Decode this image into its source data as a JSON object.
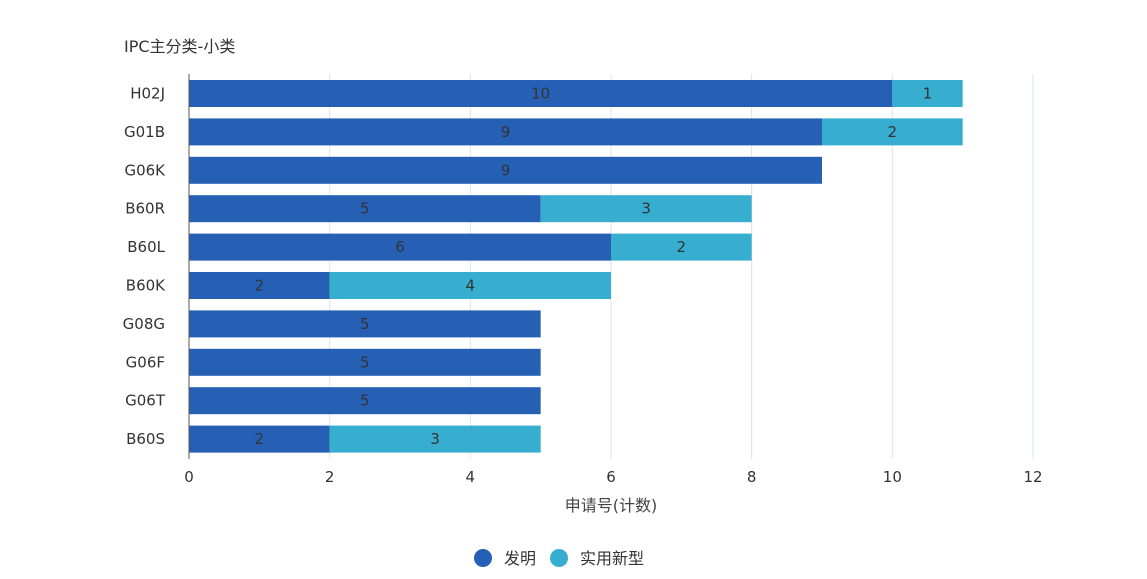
{
  "chart_data": {
    "type": "bar",
    "orientation": "horizontal",
    "stacked": true,
    "title": "IPC主分类-小类",
    "xlabel": "申请号(计数)",
    "ylabel": "",
    "xlim": [
      0,
      12
    ],
    "xticks": [
      0,
      2,
      4,
      6,
      8,
      10,
      12
    ],
    "grid": true,
    "legend_position": "bottom",
    "categories": [
      "H02J",
      "G01B",
      "G06K",
      "B60R",
      "B60L",
      "B60K",
      "G08G",
      "G06F",
      "G06T",
      "B60S"
    ],
    "series": [
      {
        "name": "发明",
        "color": "#2660b5",
        "values": [
          10,
          9,
          9,
          5,
          6,
          2,
          5,
          5,
          5,
          2
        ]
      },
      {
        "name": "实用新型",
        "color": "#37adcf",
        "values": [
          1,
          2,
          0,
          3,
          2,
          4,
          0,
          0,
          0,
          3
        ]
      }
    ]
  }
}
